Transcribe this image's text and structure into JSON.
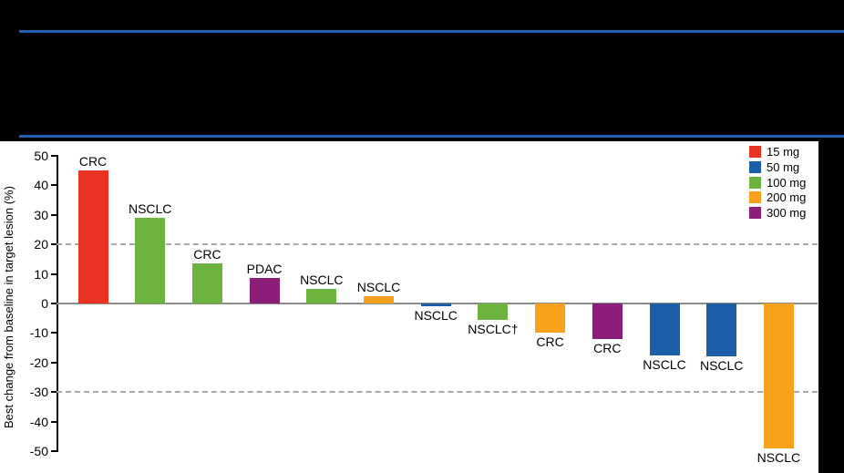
{
  "header": {
    "style": "redacted-black",
    "rule_color": "#1f62ad"
  },
  "chart_data": {
    "type": "bar",
    "subtype": "waterfall",
    "title": "",
    "xlabel": "",
    "ylabel": "Best change from baseline in target lesion (%)",
    "ylim": [
      -50,
      50
    ],
    "yticks": [
      50,
      40,
      30,
      20,
      10,
      0,
      -10,
      -20,
      -30,
      -40,
      -50
    ],
    "reference_lines": [
      20,
      -30
    ],
    "grid": "off",
    "legend_position": "top-right",
    "legend_title": "",
    "doses": [
      {
        "label": "15 mg",
        "color": "#ea3323"
      },
      {
        "label": "50 mg",
        "color": "#1b5fa8"
      },
      {
        "label": "100 mg",
        "color": "#6cb33f"
      },
      {
        "label": "200 mg",
        "color": "#f9a11b"
      },
      {
        "label": "300 mg",
        "color": "#8c1d78"
      }
    ],
    "bars": [
      {
        "label": "CRC",
        "dose": "15 mg",
        "value": 45
      },
      {
        "label": "NSCLC",
        "dose": "100 mg",
        "value": 29
      },
      {
        "label": "CRC",
        "dose": "100 mg",
        "value": 13.5
      },
      {
        "label": "PDAC",
        "dose": "300 mg",
        "value": 8.5
      },
      {
        "label": "NSCLC",
        "dose": "100 mg",
        "value": 5
      },
      {
        "label": "NSCLC",
        "dose": "200 mg",
        "value": 2.5
      },
      {
        "label": "NSCLC",
        "dose": "50 mg",
        "value": -1
      },
      {
        "label": "NSCLC†",
        "dose": "100 mg",
        "value": -5.5
      },
      {
        "label": "CRC",
        "dose": "200 mg",
        "value": -10
      },
      {
        "label": "CRC",
        "dose": "300 mg",
        "value": -12
      },
      {
        "label": "NSCLC",
        "dose": "50 mg",
        "value": -17.5
      },
      {
        "label": "NSCLC",
        "dose": "50 mg",
        "value": -18
      },
      {
        "label": "NSCLC",
        "dose": "200 mg",
        "value": -49
      }
    ]
  }
}
